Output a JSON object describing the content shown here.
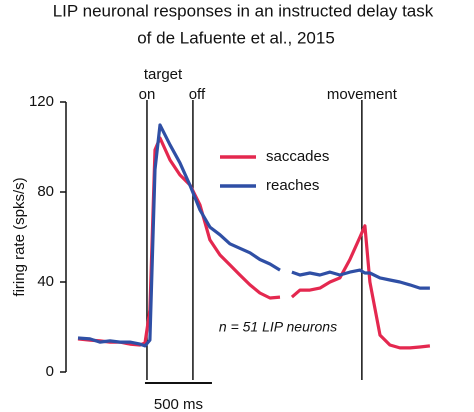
{
  "chart_data": {
    "type": "line",
    "title": "LIP neuronal responses in an instructed delay task",
    "subtitle": "of de Lafuente et al., 2015",
    "y_label": "firing rate (spks/s)",
    "annotations": {
      "target": "target",
      "note": "n = 51 LIP neurons"
    },
    "events": [
      {
        "label": "on",
        "x": 0
      },
      {
        "label": "off",
        "x": 343
      },
      {
        "label": "movement",
        "x": 1604
      }
    ],
    "scale_bar": {
      "length": 500,
      "label": "500 ms"
    },
    "x": [
      -515,
      -425,
      -351,
      -276,
      -201,
      -127,
      -52,
      -15,
      22,
      60,
      97,
      172,
      246,
      321,
      396,
      470,
      545,
      619,
      694,
      769,
      843,
      918,
      993,
      1037,
      1082,
      1142,
      1216,
      1291,
      1366,
      1440,
      1515,
      1590,
      1627,
      1664,
      1739,
      1813,
      1888,
      1963,
      2037,
      2112
    ],
    "series": [
      {
        "name": "saccades",
        "color": "#e4284f",
        "values": [
          14.7,
          14.2,
          13.8,
          13.3,
          13.3,
          12.4,
          12,
          12.9,
          27.6,
          98.7,
          104,
          94.2,
          87.6,
          83.1,
          74.2,
          58.7,
          52,
          47.6,
          43.1,
          38.7,
          35.1,
          32.9,
          33.3,
          null,
          33.3,
          36.4,
          36.4,
          37.3,
          40,
          41.8,
          50,
          60,
          65,
          40,
          16.4,
          12,
          10.7,
          10.7,
          11.1,
          11.6
        ]
      },
      {
        "name": "reaches",
        "color": "#2f4fa5",
        "values": [
          15.1,
          14.7,
          13.3,
          13.8,
          13.3,
          13.3,
          12.4,
          11.6,
          14.2,
          90,
          109.8,
          101,
          93,
          83,
          72,
          64.4,
          61,
          57,
          55,
          53,
          50,
          48,
          45.3,
          null,
          44.4,
          43.1,
          44,
          43.1,
          44.4,
          43.1,
          44.4,
          45.3,
          44,
          44,
          41.8,
          40.9,
          40,
          38.7,
          37.3,
          37.3
        ]
      }
    ],
    "xlim": [
      -520,
      2120
    ],
    "ylim": [
      0,
      120
    ],
    "yticks": [
      0,
      40,
      80,
      120
    ]
  }
}
